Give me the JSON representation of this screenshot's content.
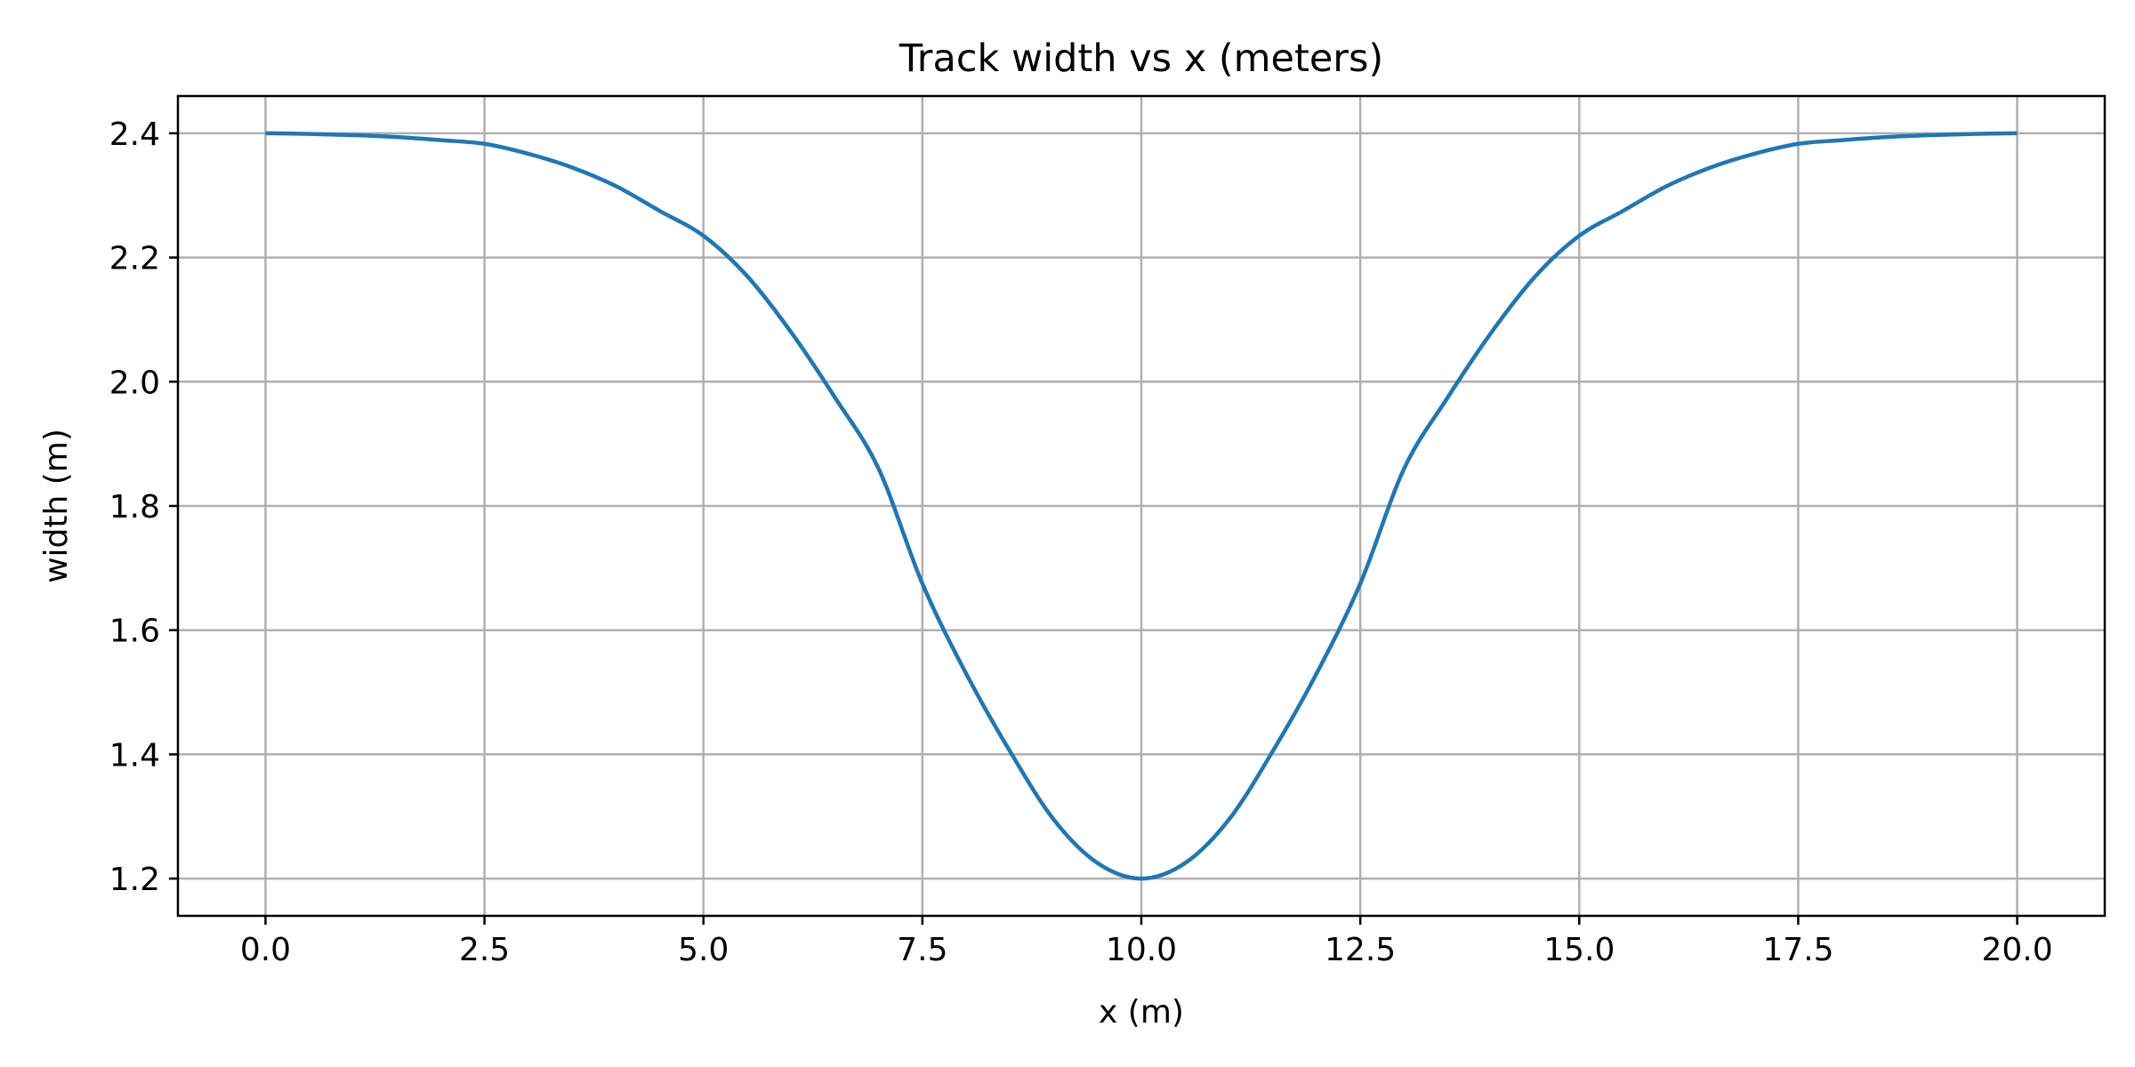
{
  "chart_data": {
    "type": "line",
    "title": "Track width vs x (meters)",
    "xlabel": "x (m)",
    "ylabel": "width (m)",
    "xlim": [
      -1.0,
      21.0
    ],
    "ylim": [
      1.14,
      2.46
    ],
    "grid": true,
    "legend": "none",
    "x_ticks": [
      0.0,
      2.5,
      5.0,
      7.5,
      10.0,
      12.5,
      15.0,
      17.5,
      20.0
    ],
    "x_tick_labels": [
      "0.0",
      "2.5",
      "5.0",
      "7.5",
      "10.0",
      "12.5",
      "15.0",
      "17.5",
      "20.0"
    ],
    "y_ticks": [
      1.2,
      1.4,
      1.6,
      1.8,
      2.0,
      2.2,
      2.4
    ],
    "y_tick_labels": [
      "1.2",
      "1.4",
      "1.6",
      "1.8",
      "2.0",
      "2.2",
      "2.4"
    ],
    "series": [
      {
        "color": "#1f77b4",
        "x": [
          0.0,
          0.5,
          1.0,
          1.5,
          2.0,
          2.5,
          3.0,
          3.5,
          4.0,
          4.5,
          5.0,
          5.5,
          6.0,
          6.5,
          7.0,
          7.5,
          8.0,
          8.5,
          9.0,
          9.5,
          10.0,
          10.5,
          11.0,
          11.5,
          12.0,
          12.5,
          13.0,
          13.5,
          14.0,
          14.5,
          15.0,
          15.5,
          16.0,
          16.5,
          17.0,
          17.5,
          18.0,
          18.5,
          19.0,
          19.5,
          20.0
        ],
        "y": [
          2.4,
          2.399,
          2.397,
          2.394,
          2.389,
          2.383,
          2.367,
          2.345,
          2.315,
          2.275,
          2.235,
          2.17,
          2.08,
          1.975,
          1.86,
          1.675,
          1.53,
          1.405,
          1.295,
          1.225,
          1.2,
          1.225,
          1.295,
          1.405,
          1.53,
          1.675,
          1.86,
          1.975,
          2.08,
          2.17,
          2.235,
          2.275,
          2.315,
          2.345,
          2.367,
          2.383,
          2.389,
          2.394,
          2.397,
          2.399,
          2.4
        ]
      }
    ]
  }
}
